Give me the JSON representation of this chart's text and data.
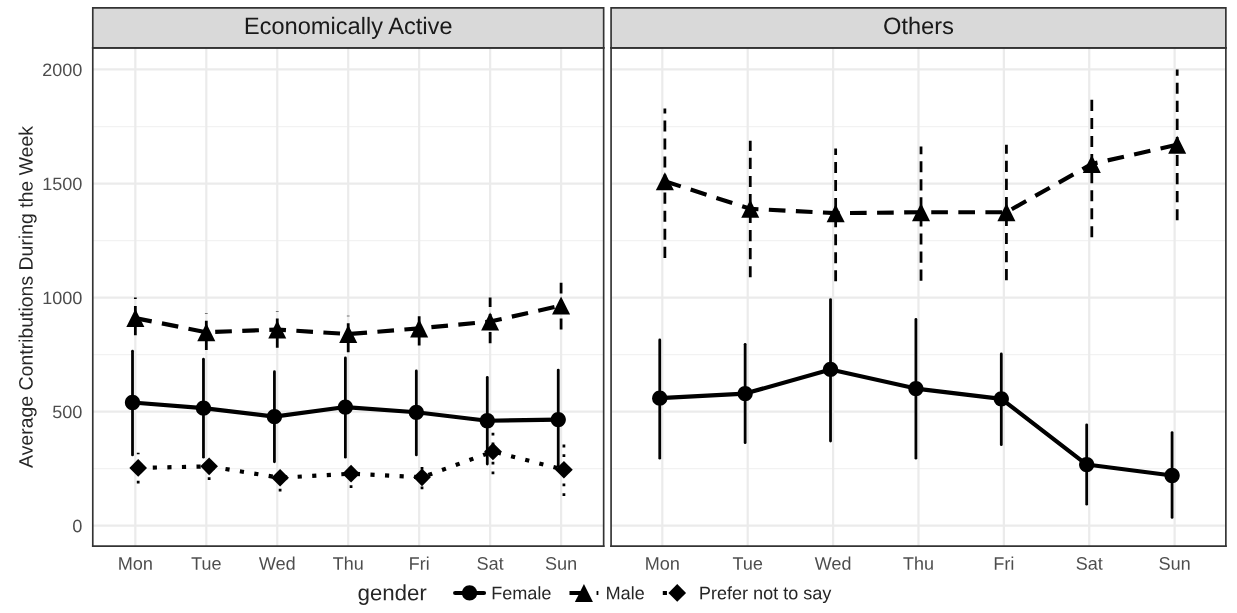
{
  "chart_data": [
    {
      "type": "line",
      "title": "Economically Active",
      "ylabel": "Average Contributions During the Week",
      "categories": [
        "Mon",
        "Tue",
        "Wed",
        "Thu",
        "Fri",
        "Sat",
        "Sun"
      ],
      "ylim": [
        -90,
        2095
      ],
      "yticks": [
        0,
        500,
        1000,
        1500,
        2000
      ],
      "grid": true,
      "legend": "bottom",
      "legend_title": "gender",
      "series": [
        {
          "name": "Female",
          "color": "#000000",
          "marker": "circle",
          "line_style": "solid",
          "values": [
            540,
            515,
            478,
            520,
            497,
            460,
            465
          ],
          "errors": [
            [
              310,
              765
            ],
            [
              300,
              730
            ],
            [
              280,
              675
            ],
            [
              300,
              735
            ],
            [
              310,
              678
            ],
            [
              270,
              650
            ],
            [
              260,
              682
            ]
          ]
        },
        {
          "name": "Male",
          "color": "#000000",
          "marker": "triangle",
          "line_style": "dashed",
          "values": [
            910,
            848,
            860,
            840,
            865,
            895,
            965
          ],
          "errors": [
            [
              835,
              1000
            ],
            [
              770,
              930
            ],
            [
              780,
              940
            ],
            [
              760,
              920
            ],
            [
              790,
              940
            ],
            [
              800,
              1000
            ],
            [
              860,
              1065
            ]
          ]
        },
        {
          "name": "Prefer not to say",
          "color": "#000000",
          "marker": "diamond",
          "line_style": "dotted",
          "values": [
            253,
            260,
            210,
            228,
            212,
            325,
            245
          ],
          "errors": [
            [
              185,
              320
            ],
            [
              200,
              260
            ],
            [
              150,
              210
            ],
            [
              165,
              228
            ],
            [
              160,
              265
            ],
            [
              225,
              420
            ],
            [
              130,
              360
            ]
          ]
        }
      ]
    },
    {
      "type": "line",
      "title": "Others",
      "categories": [
        "Mon",
        "Tue",
        "Wed",
        "Thu",
        "Fri",
        "Sat",
        "Sun"
      ],
      "ylim": [
        -90,
        2095
      ],
      "yticks": [
        0,
        500,
        1000,
        1500,
        2000
      ],
      "grid": true,
      "tick_labels": "x",
      "series": [
        {
          "name": "Female",
          "color": "#000000",
          "marker": "circle",
          "line_style": "solid",
          "values": [
            559,
            579,
            685,
            601,
            556,
            268,
            220
          ],
          "errors": [
            [
              296,
              814
            ],
            [
              364,
              795
            ],
            [
              371,
              991
            ],
            [
              296,
              904
            ],
            [
              355,
              753
            ],
            [
              94,
              442
            ],
            [
              36,
              408
            ]
          ]
        },
        {
          "name": "Male",
          "color": "#000000",
          "marker": "triangle",
          "line_style": "dashed",
          "values": [
            1510,
            1389,
            1370,
            1374,
            1374,
            1586,
            1670
          ],
          "errors": [
            [
              1174,
              1829
            ],
            [
              1089,
              1688
            ],
            [
              1071,
              1654
            ],
            [
              1074,
              1662
            ],
            [
              1076,
              1670
            ],
            [
              1264,
              1867
            ],
            [
              1339,
              2000
            ]
          ]
        }
      ]
    }
  ]
}
